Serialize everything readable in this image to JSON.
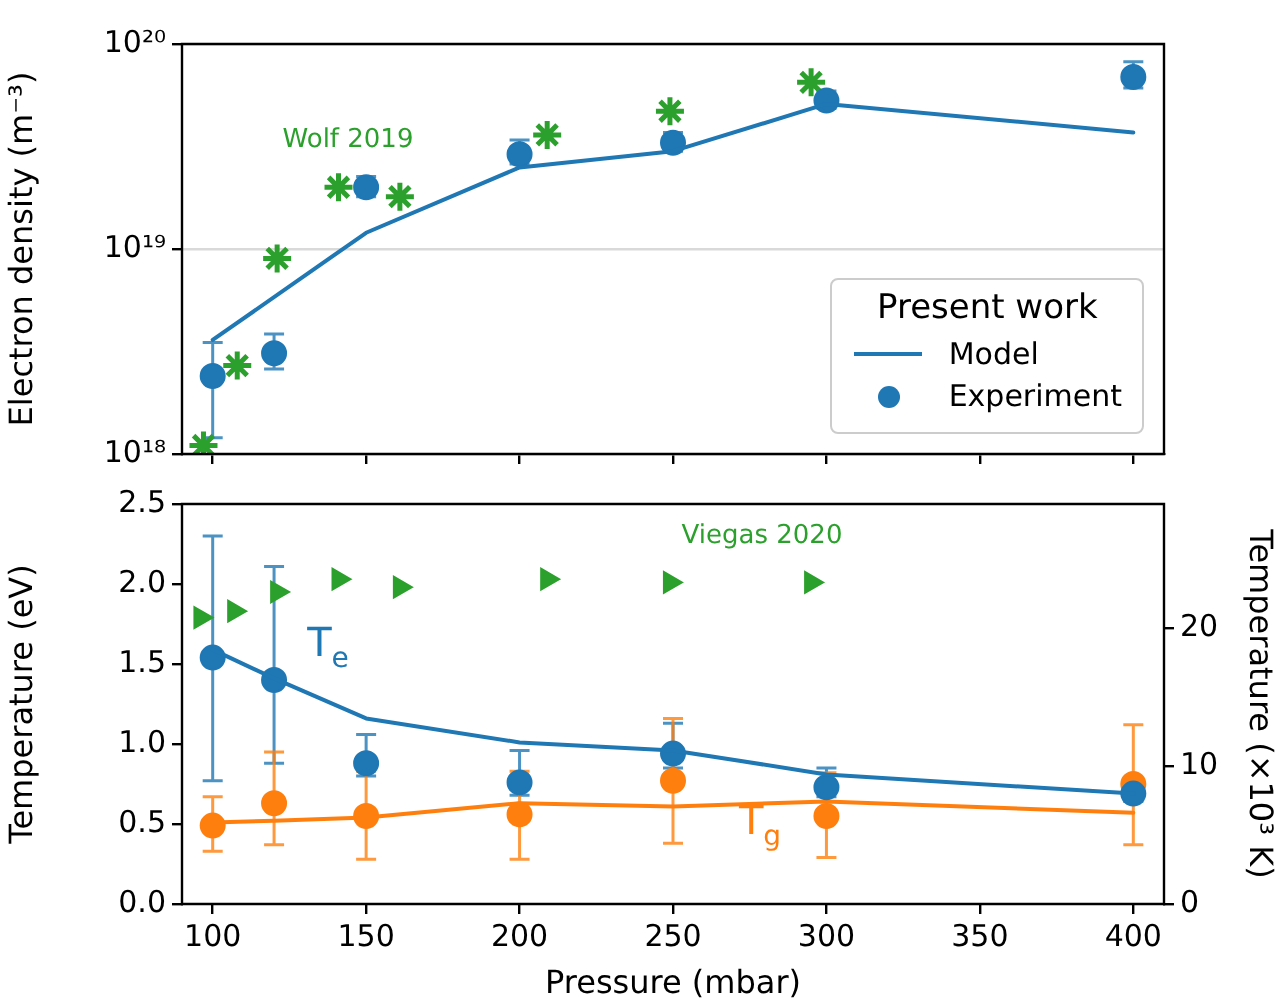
{
  "chart_data": [
    {
      "type": "line",
      "ylabel": "Electron density (m⁻³)",
      "xlim": [
        90,
        410
      ],
      "xticks": [
        100,
        150,
        200,
        250,
        300,
        350,
        400
      ],
      "ylim": [
        1e+18,
        1e+20
      ],
      "yticks": [
        {
          "value": 1e+18,
          "label": "10¹⁸"
        },
        {
          "value": 1e+19,
          "label": "10¹⁹"
        },
        {
          "value": 1e+20,
          "label": "10²⁰"
        }
      ],
      "log": "y",
      "grid": "y",
      "tick_labels": "y",
      "legend": "bottom right",
      "legend_title": "Present work",
      "series": [
        {
          "name": "Model",
          "type": "line",
          "color": "#1f77b4",
          "marker": "none",
          "x": [
            100,
            150,
            200,
            250,
            300,
            400
          ],
          "values": [
            3.6e+18,
            1.2e+19,
            2.5e+19,
            3e+19,
            5.1e+19,
            3.7e+19
          ]
        },
        {
          "name": "Experiment",
          "type": "scatter",
          "color": "#1f77b4",
          "marker": "circle",
          "x": [
            100,
            120,
            150,
            200,
            250,
            300,
            400
          ],
          "values": [
            2.4e+18,
            3.1e+18,
            2e+19,
            2.9e+19,
            3.3e+19,
            5.3e+19,
            6.9e+19
          ],
          "errors": [
            [
              1.2e+18,
              3.5e+18
            ],
            [
              2.6e+18,
              3.85e+18
            ],
            [
              1.8e+19,
              2.26e+19
            ],
            [
              2.6e+19,
              3.4e+19
            ],
            [
              3e+19,
              3.7e+19
            ],
            [
              4.85e+19,
              5.9e+19
            ],
            [
              6.1e+19,
              8.2e+19
            ]
          ]
        },
        {
          "name": "Wolf 2019",
          "type": "scatter",
          "color": "#2ca02c",
          "marker": "cross",
          "x": [
            97,
            108,
            121,
            141,
            161,
            209,
            249,
            295
          ],
          "values": [
            1.1e+18,
            2.7e+18,
            9e+18,
            2e+19,
            1.8e+19,
            3.6e+19,
            4.7e+19,
            6.5e+19
          ]
        }
      ]
    },
    {
      "type": "line",
      "xlabel": "Pressure (mbar)",
      "ylabel": "Temperature (eV)",
      "y2label": "Temperature (×10³ K)",
      "xlim": [
        90,
        410
      ],
      "xticks": [
        100,
        150,
        200,
        250,
        300,
        350,
        400
      ],
      "ylim": [
        0,
        2.5
      ],
      "yticks": [
        {
          "value": 0,
          "label": "0.0"
        },
        {
          "value": 0.5,
          "label": "0.5"
        },
        {
          "value": 1,
          "label": "1.0"
        },
        {
          "value": 1.5,
          "label": "1.5"
        },
        {
          "value": 2,
          "label": "2.0"
        },
        {
          "value": 2.5,
          "label": "2.5"
        }
      ],
      "y2lim": [
        0,
        29
      ],
      "y2ticks": [
        0,
        10,
        20
      ],
      "series": [
        {
          "name": "T$_{e}$",
          "type": "line",
          "color": "#1f77b4",
          "marker": "none",
          "x": [
            100,
            120,
            150,
            200,
            250,
            300,
            400
          ],
          "values": [
            1.59,
            1.41,
            1.16,
            1.01,
            0.96,
            0.81,
            0.69
          ]
        },
        {
          "type": "scatter",
          "color": "#1f77b4",
          "marker": "circle",
          "x": [
            100,
            120,
            150,
            200,
            250,
            300,
            400
          ],
          "values": [
            1.54,
            1.4,
            0.88,
            0.76,
            0.94,
            0.73,
            0.69
          ],
          "errors": [
            [
              0.77,
              2.3
            ],
            [
              0.88,
              2.11
            ],
            [
              0.8,
              1.06
            ],
            [
              0.68,
              0.96
            ],
            [
              0.85,
              1.13
            ],
            [
              0.67,
              0.85
            ],
            [
              0.64,
              0.77
            ]
          ]
        },
        {
          "name": "T$_{g}$",
          "type": "line",
          "color": "#ff7f0e",
          "marker": "none",
          "x": [
            100,
            120,
            150,
            200,
            250,
            300,
            400
          ],
          "values": [
            0.51,
            0.52,
            0.54,
            0.63,
            0.61,
            0.64,
            0.57
          ]
        },
        {
          "type": "scatter",
          "color": "#ff7f0e",
          "marker": "circle",
          "x": [
            100,
            120,
            150,
            200,
            250,
            300,
            400
          ],
          "values": [
            0.49,
            0.63,
            0.55,
            0.56,
            0.77,
            0.55,
            0.75
          ],
          "errors": [
            [
              0.33,
              0.67
            ],
            [
              0.37,
              0.95
            ],
            [
              0.28,
              0.83
            ],
            [
              0.28,
              0.83
            ],
            [
              0.38,
              1.16
            ],
            [
              0.29,
              0.82
            ],
            [
              0.37,
              1.12
            ]
          ]
        },
        {
          "name": "Viegas 2020",
          "type": "scatter",
          "color": "#2ca02c",
          "marker": "triangle",
          "x": [
            96,
            107,
            121,
            141,
            161,
            209,
            249,
            295
          ],
          "values": [
            1.79,
            1.83,
            1.95,
            2.03,
            1.98,
            2.03,
            2.01,
            2.01
          ]
        }
      ]
    }
  ]
}
